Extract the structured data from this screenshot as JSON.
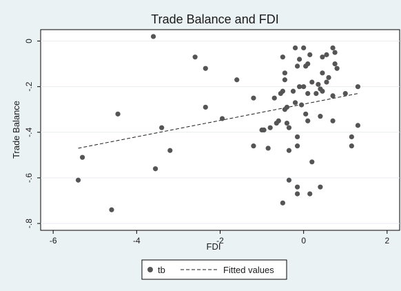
{
  "chart_data": {
    "type": "scatter",
    "title": "Trade Balance and FDI",
    "xlabel": "FDI",
    "ylabel": "Trade Balance",
    "xlim": [
      -6.3,
      2.3
    ],
    "ylim": [
      -0.83,
      0.05
    ],
    "xticks": [
      -6,
      -4,
      -2,
      0,
      2
    ],
    "xtick_labels": [
      "-6",
      "-4",
      "-2",
      "0",
      "2"
    ],
    "yticks": [
      0,
      -0.2,
      -0.4,
      -0.6,
      -0.8
    ],
    "ytick_labels": [
      "0",
      "-.2",
      "-.4",
      "-.6",
      "-.8"
    ],
    "grid": "horizontal",
    "legend_position": "bottom",
    "colors": {
      "background": "#eaf2f3",
      "plot_area": "#ffffff",
      "marker": "#555555",
      "line": "#1a1a1a"
    },
    "series": [
      {
        "name": "tb",
        "kind": "scatter",
        "points": [
          [
            -3.6,
            0.02
          ],
          [
            -2.6,
            -0.07
          ],
          [
            -2.35,
            -0.12
          ],
          [
            -1.6,
            -0.17
          ],
          [
            -4.45,
            -0.32
          ],
          [
            -2.35,
            -0.29
          ],
          [
            -1.95,
            -0.34
          ],
          [
            -3.4,
            -0.38
          ],
          [
            -3.2,
            -0.48
          ],
          [
            -5.3,
            -0.51
          ],
          [
            -5.4,
            -0.61
          ],
          [
            -3.55,
            -0.56
          ],
          [
            -4.6,
            -0.74
          ],
          [
            -1.2,
            -0.25
          ],
          [
            -1.2,
            -0.46
          ],
          [
            -1.0,
            -0.39
          ],
          [
            -0.95,
            -0.39
          ],
          [
            -0.85,
            -0.47
          ],
          [
            -0.8,
            -0.38
          ],
          [
            -0.7,
            -0.25
          ],
          [
            -0.65,
            -0.36
          ],
          [
            -0.6,
            -0.35
          ],
          [
            -0.55,
            -0.23
          ],
          [
            -0.5,
            -0.22
          ],
          [
            -0.5,
            -0.07
          ],
          [
            -0.45,
            -0.14
          ],
          [
            -0.45,
            -0.17
          ],
          [
            -0.45,
            -0.3
          ],
          [
            -0.4,
            -0.29
          ],
          [
            -0.4,
            -0.36
          ],
          [
            -0.35,
            -0.38
          ],
          [
            -0.35,
            -0.48
          ],
          [
            -0.35,
            -0.61
          ],
          [
            -0.5,
            -0.71
          ],
          [
            -0.25,
            -0.22
          ],
          [
            -0.2,
            -0.03
          ],
          [
            -0.2,
            -0.27
          ],
          [
            -0.15,
            -0.11
          ],
          [
            -0.15,
            -0.42
          ],
          [
            -0.15,
            -0.46
          ],
          [
            -0.15,
            -0.64
          ],
          [
            -0.15,
            -0.67
          ],
          [
            -0.1,
            -0.08
          ],
          [
            -0.1,
            -0.2
          ],
          [
            -0.05,
            -0.28
          ],
          [
            0.0,
            -0.03
          ],
          [
            0.0,
            -0.2
          ],
          [
            0.05,
            -0.11
          ],
          [
            0.05,
            -0.32
          ],
          [
            0.1,
            -0.1
          ],
          [
            0.1,
            -0.23
          ],
          [
            0.1,
            -0.35
          ],
          [
            0.15,
            -0.06
          ],
          [
            0.2,
            -0.18
          ],
          [
            0.2,
            -0.53
          ],
          [
            0.15,
            -0.67
          ],
          [
            0.3,
            -0.23
          ],
          [
            0.35,
            -0.19
          ],
          [
            0.4,
            -0.33
          ],
          [
            0.4,
            -0.21
          ],
          [
            0.45,
            -0.22
          ],
          [
            0.45,
            -0.14
          ],
          [
            0.45,
            -0.07
          ],
          [
            0.55,
            -0.06
          ],
          [
            0.55,
            -0.18
          ],
          [
            0.6,
            -0.16
          ],
          [
            0.4,
            -0.64
          ],
          [
            0.7,
            -0.03
          ],
          [
            0.75,
            -0.05
          ],
          [
            0.75,
            -0.1
          ],
          [
            0.8,
            -0.12
          ],
          [
            0.7,
            -0.24
          ],
          [
            0.7,
            -0.35
          ],
          [
            1.0,
            -0.23
          ],
          [
            1.15,
            -0.42
          ],
          [
            1.15,
            -0.46
          ],
          [
            1.3,
            -0.2
          ],
          [
            1.3,
            -0.37
          ]
        ]
      },
      {
        "name": "Fitted values",
        "kind": "line",
        "dashed": true,
        "x": [
          -5.4,
          1.3
        ],
        "y": [
          -0.47,
          -0.23
        ]
      }
    ]
  }
}
